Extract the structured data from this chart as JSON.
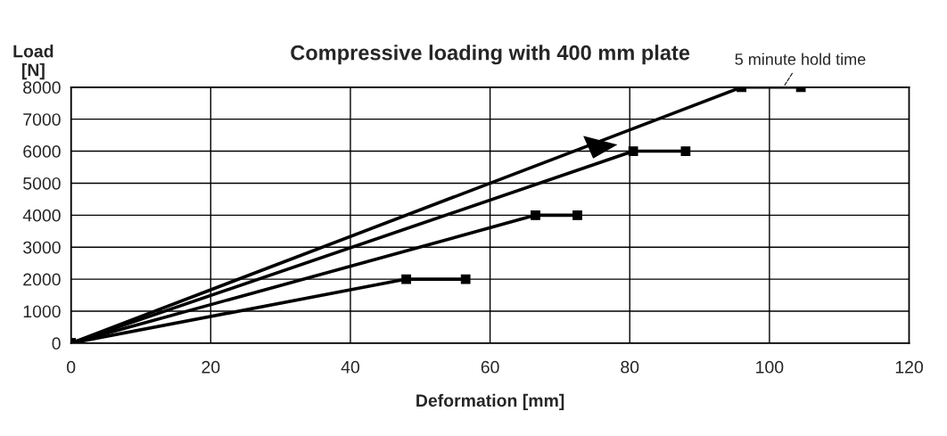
{
  "chart_data": {
    "type": "line",
    "title": "Compressive loading with 400 mm plate",
    "xlabel": "Deformation [mm]",
    "ylabel": "Load\n[N]",
    "series": [
      {
        "color": "#000000",
        "x": [
          0,
          48,
          56.5
        ],
        "values": [
          0,
          2000,
          2000
        ]
      },
      {
        "color": "#000000",
        "x": [
          0,
          66.5,
          72.5
        ],
        "values": [
          0,
          4000,
          4000
        ]
      },
      {
        "color": "#000000",
        "x": [
          0,
          80.5,
          88
        ],
        "values": [
          0,
          6000,
          6000
        ]
      },
      {
        "color": "#000000",
        "x": [
          0,
          96,
          104.5
        ],
        "values": [
          0,
          8000,
          8000
        ]
      }
    ],
    "annotations": [
      {
        "text": "5 minute hold time",
        "x": 102,
        "y": 8000
      }
    ],
    "xlim": [
      0,
      120
    ],
    "xticks": [
      0,
      20,
      40,
      60,
      80,
      100,
      120
    ],
    "ylim": [
      0,
      8000
    ],
    "yticks": [
      0,
      1000,
      2000,
      3000,
      4000,
      5000,
      6000,
      7000,
      8000
    ],
    "grid": true,
    "marker": "square",
    "line_style": "solid",
    "legend": false
  }
}
